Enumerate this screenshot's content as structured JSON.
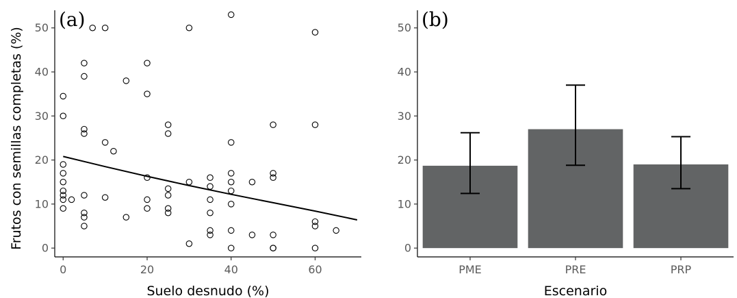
{
  "chart_data": [
    {
      "type": "scatter",
      "panel_label": "(a)",
      "xlabel": "Suelo desnudo (%)",
      "ylabel": "Frutos con semillas completas (%)",
      "xlim": [
        -2,
        71
      ],
      "ylim": [
        -2,
        54
      ],
      "xticks": [
        0,
        20,
        40,
        60
      ],
      "yticks": [
        0,
        10,
        20,
        30,
        40,
        50
      ],
      "grid": false,
      "points": [
        [
          0,
          34.5
        ],
        [
          0,
          30
        ],
        [
          0,
          19
        ],
        [
          0,
          17
        ],
        [
          0,
          15
        ],
        [
          0,
          13
        ],
        [
          0,
          12
        ],
        [
          0,
          11
        ],
        [
          0,
          9
        ],
        [
          2,
          11
        ],
        [
          5,
          42
        ],
        [
          5,
          39
        ],
        [
          5,
          27
        ],
        [
          5,
          26
        ],
        [
          5,
          12
        ],
        [
          5,
          8
        ],
        [
          5,
          7
        ],
        [
          5,
          5
        ],
        [
          7,
          50
        ],
        [
          10,
          50
        ],
        [
          10,
          24
        ],
        [
          10,
          11.5
        ],
        [
          12,
          22
        ],
        [
          15,
          38
        ],
        [
          15,
          7
        ],
        [
          20,
          42
        ],
        [
          20,
          35
        ],
        [
          20,
          16
        ],
        [
          20,
          11
        ],
        [
          20,
          9
        ],
        [
          25,
          28
        ],
        [
          25,
          26
        ],
        [
          25,
          13.5
        ],
        [
          25,
          12
        ],
        [
          25,
          9
        ],
        [
          25,
          8
        ],
        [
          30,
          50
        ],
        [
          30,
          15
        ],
        [
          30,
          1
        ],
        [
          35,
          16
        ],
        [
          35,
          14
        ],
        [
          35,
          11
        ],
        [
          35,
          8
        ],
        [
          35,
          4
        ],
        [
          35,
          3
        ],
        [
          40,
          53
        ],
        [
          40,
          24
        ],
        [
          40,
          17
        ],
        [
          40,
          15
        ],
        [
          40,
          13
        ],
        [
          40,
          10
        ],
        [
          40,
          4
        ],
        [
          40,
          0
        ],
        [
          45,
          15
        ],
        [
          45,
          3
        ],
        [
          50,
          28
        ],
        [
          50,
          17
        ],
        [
          50,
          16
        ],
        [
          50,
          3
        ],
        [
          50,
          0
        ],
        [
          50,
          0
        ],
        [
          60,
          49
        ],
        [
          60,
          28
        ],
        [
          60,
          6
        ],
        [
          60,
          5
        ],
        [
          60,
          0
        ],
        [
          65,
          4
        ]
      ],
      "fit_curve": {
        "x": [
          0,
          10,
          20,
          30,
          40,
          50,
          60,
          70
        ],
        "y": [
          20.8,
          18.5,
          16.3,
          14.2,
          12.2,
          10.3,
          8.4,
          6.4
        ]
      }
    },
    {
      "type": "bar",
      "panel_label": "(b)",
      "xlabel": "Escenario",
      "ylabel": "",
      "categories": [
        "PME",
        "PRE",
        "PRP"
      ],
      "values": [
        18.7,
        27.0,
        19.0
      ],
      "error_low": [
        12.4,
        18.8,
        13.5
      ],
      "error_high": [
        26.2,
        37.0,
        25.3
      ],
      "ylim": [
        -2,
        54
      ],
      "yticks": [
        0,
        10,
        20,
        30,
        40,
        50
      ],
      "grid": false,
      "bar_color": "#626465"
    }
  ]
}
